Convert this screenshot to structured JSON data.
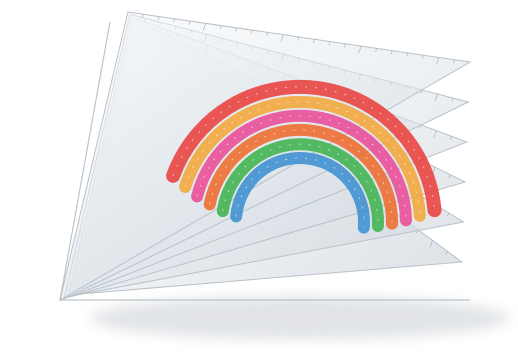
{
  "scene": {
    "subject": "stack-of-transparent-triangle-rulers-with-rainbow-arcs",
    "colors": {
      "background": "#ffffff",
      "ruler_fill": "#e9eef3",
      "ruler_edge": "#b9c1c9",
      "ruler_tick": "#9aa3ab",
      "shadow": "#bfc5cb",
      "rainbow": [
        "#e8403c",
        "#f2a63a",
        "#e94b97",
        "#ee6b2c",
        "#3fb34f",
        "#3d8fd0"
      ]
    },
    "layer_count": 6,
    "arc_count": 6
  }
}
